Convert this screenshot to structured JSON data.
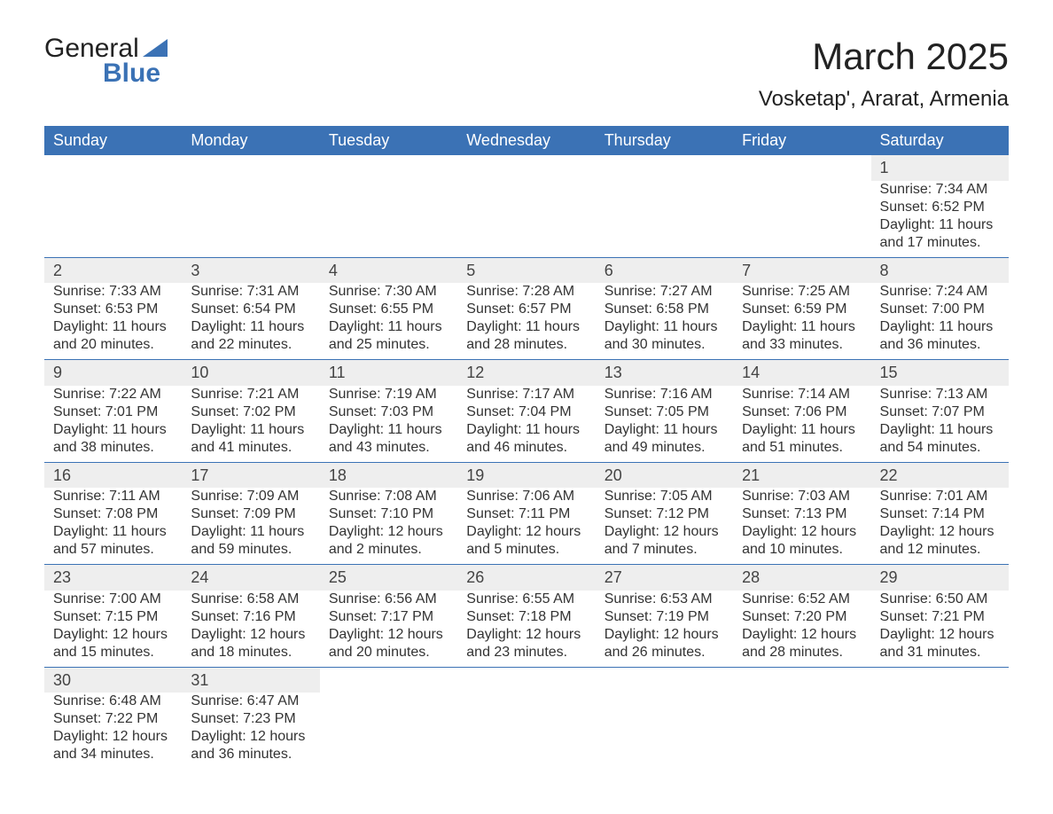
{
  "logo": {
    "line1": "General",
    "line2": "Blue"
  },
  "title": "March 2025",
  "subtitle": "Vosketap', Ararat, Armenia",
  "colors": {
    "header_bg": "#3b72b5",
    "header_text": "#ffffff",
    "daynum_bg": "#eeeeee",
    "border": "#3b72b5",
    "text": "#333333",
    "logo_blue": "#3b72b5",
    "page_bg": "#ffffff"
  },
  "weekdays": [
    "Sunday",
    "Monday",
    "Tuesday",
    "Wednesday",
    "Thursday",
    "Friday",
    "Saturday"
  ],
  "weeks": [
    [
      null,
      null,
      null,
      null,
      null,
      null,
      {
        "day": "1",
        "sunrise": "Sunrise: 7:34 AM",
        "sunset": "Sunset: 6:52 PM",
        "daylight1": "Daylight: 11 hours",
        "daylight2": "and 17 minutes."
      }
    ],
    [
      {
        "day": "2",
        "sunrise": "Sunrise: 7:33 AM",
        "sunset": "Sunset: 6:53 PM",
        "daylight1": "Daylight: 11 hours",
        "daylight2": "and 20 minutes."
      },
      {
        "day": "3",
        "sunrise": "Sunrise: 7:31 AM",
        "sunset": "Sunset: 6:54 PM",
        "daylight1": "Daylight: 11 hours",
        "daylight2": "and 22 minutes."
      },
      {
        "day": "4",
        "sunrise": "Sunrise: 7:30 AM",
        "sunset": "Sunset: 6:55 PM",
        "daylight1": "Daylight: 11 hours",
        "daylight2": "and 25 minutes."
      },
      {
        "day": "5",
        "sunrise": "Sunrise: 7:28 AM",
        "sunset": "Sunset: 6:57 PM",
        "daylight1": "Daylight: 11 hours",
        "daylight2": "and 28 minutes."
      },
      {
        "day": "6",
        "sunrise": "Sunrise: 7:27 AM",
        "sunset": "Sunset: 6:58 PM",
        "daylight1": "Daylight: 11 hours",
        "daylight2": "and 30 minutes."
      },
      {
        "day": "7",
        "sunrise": "Sunrise: 7:25 AM",
        "sunset": "Sunset: 6:59 PM",
        "daylight1": "Daylight: 11 hours",
        "daylight2": "and 33 minutes."
      },
      {
        "day": "8",
        "sunrise": "Sunrise: 7:24 AM",
        "sunset": "Sunset: 7:00 PM",
        "daylight1": "Daylight: 11 hours",
        "daylight2": "and 36 minutes."
      }
    ],
    [
      {
        "day": "9",
        "sunrise": "Sunrise: 7:22 AM",
        "sunset": "Sunset: 7:01 PM",
        "daylight1": "Daylight: 11 hours",
        "daylight2": "and 38 minutes."
      },
      {
        "day": "10",
        "sunrise": "Sunrise: 7:21 AM",
        "sunset": "Sunset: 7:02 PM",
        "daylight1": "Daylight: 11 hours",
        "daylight2": "and 41 minutes."
      },
      {
        "day": "11",
        "sunrise": "Sunrise: 7:19 AM",
        "sunset": "Sunset: 7:03 PM",
        "daylight1": "Daylight: 11 hours",
        "daylight2": "and 43 minutes."
      },
      {
        "day": "12",
        "sunrise": "Sunrise: 7:17 AM",
        "sunset": "Sunset: 7:04 PM",
        "daylight1": "Daylight: 11 hours",
        "daylight2": "and 46 minutes."
      },
      {
        "day": "13",
        "sunrise": "Sunrise: 7:16 AM",
        "sunset": "Sunset: 7:05 PM",
        "daylight1": "Daylight: 11 hours",
        "daylight2": "and 49 minutes."
      },
      {
        "day": "14",
        "sunrise": "Sunrise: 7:14 AM",
        "sunset": "Sunset: 7:06 PM",
        "daylight1": "Daylight: 11 hours",
        "daylight2": "and 51 minutes."
      },
      {
        "day": "15",
        "sunrise": "Sunrise: 7:13 AM",
        "sunset": "Sunset: 7:07 PM",
        "daylight1": "Daylight: 11 hours",
        "daylight2": "and 54 minutes."
      }
    ],
    [
      {
        "day": "16",
        "sunrise": "Sunrise: 7:11 AM",
        "sunset": "Sunset: 7:08 PM",
        "daylight1": "Daylight: 11 hours",
        "daylight2": "and 57 minutes."
      },
      {
        "day": "17",
        "sunrise": "Sunrise: 7:09 AM",
        "sunset": "Sunset: 7:09 PM",
        "daylight1": "Daylight: 11 hours",
        "daylight2": "and 59 minutes."
      },
      {
        "day": "18",
        "sunrise": "Sunrise: 7:08 AM",
        "sunset": "Sunset: 7:10 PM",
        "daylight1": "Daylight: 12 hours",
        "daylight2": "and 2 minutes."
      },
      {
        "day": "19",
        "sunrise": "Sunrise: 7:06 AM",
        "sunset": "Sunset: 7:11 PM",
        "daylight1": "Daylight: 12 hours",
        "daylight2": "and 5 minutes."
      },
      {
        "day": "20",
        "sunrise": "Sunrise: 7:05 AM",
        "sunset": "Sunset: 7:12 PM",
        "daylight1": "Daylight: 12 hours",
        "daylight2": "and 7 minutes."
      },
      {
        "day": "21",
        "sunrise": "Sunrise: 7:03 AM",
        "sunset": "Sunset: 7:13 PM",
        "daylight1": "Daylight: 12 hours",
        "daylight2": "and 10 minutes."
      },
      {
        "day": "22",
        "sunrise": "Sunrise: 7:01 AM",
        "sunset": "Sunset: 7:14 PM",
        "daylight1": "Daylight: 12 hours",
        "daylight2": "and 12 minutes."
      }
    ],
    [
      {
        "day": "23",
        "sunrise": "Sunrise: 7:00 AM",
        "sunset": "Sunset: 7:15 PM",
        "daylight1": "Daylight: 12 hours",
        "daylight2": "and 15 minutes."
      },
      {
        "day": "24",
        "sunrise": "Sunrise: 6:58 AM",
        "sunset": "Sunset: 7:16 PM",
        "daylight1": "Daylight: 12 hours",
        "daylight2": "and 18 minutes."
      },
      {
        "day": "25",
        "sunrise": "Sunrise: 6:56 AM",
        "sunset": "Sunset: 7:17 PM",
        "daylight1": "Daylight: 12 hours",
        "daylight2": "and 20 minutes."
      },
      {
        "day": "26",
        "sunrise": "Sunrise: 6:55 AM",
        "sunset": "Sunset: 7:18 PM",
        "daylight1": "Daylight: 12 hours",
        "daylight2": "and 23 minutes."
      },
      {
        "day": "27",
        "sunrise": "Sunrise: 6:53 AM",
        "sunset": "Sunset: 7:19 PM",
        "daylight1": "Daylight: 12 hours",
        "daylight2": "and 26 minutes."
      },
      {
        "day": "28",
        "sunrise": "Sunrise: 6:52 AM",
        "sunset": "Sunset: 7:20 PM",
        "daylight1": "Daylight: 12 hours",
        "daylight2": "and 28 minutes."
      },
      {
        "day": "29",
        "sunrise": "Sunrise: 6:50 AM",
        "sunset": "Sunset: 7:21 PM",
        "daylight1": "Daylight: 12 hours",
        "daylight2": "and 31 minutes."
      }
    ],
    [
      {
        "day": "30",
        "sunrise": "Sunrise: 6:48 AM",
        "sunset": "Sunset: 7:22 PM",
        "daylight1": "Daylight: 12 hours",
        "daylight2": "and 34 minutes."
      },
      {
        "day": "31",
        "sunrise": "Sunrise: 6:47 AM",
        "sunset": "Sunset: 7:23 PM",
        "daylight1": "Daylight: 12 hours",
        "daylight2": "and 36 minutes."
      },
      null,
      null,
      null,
      null,
      null
    ]
  ]
}
